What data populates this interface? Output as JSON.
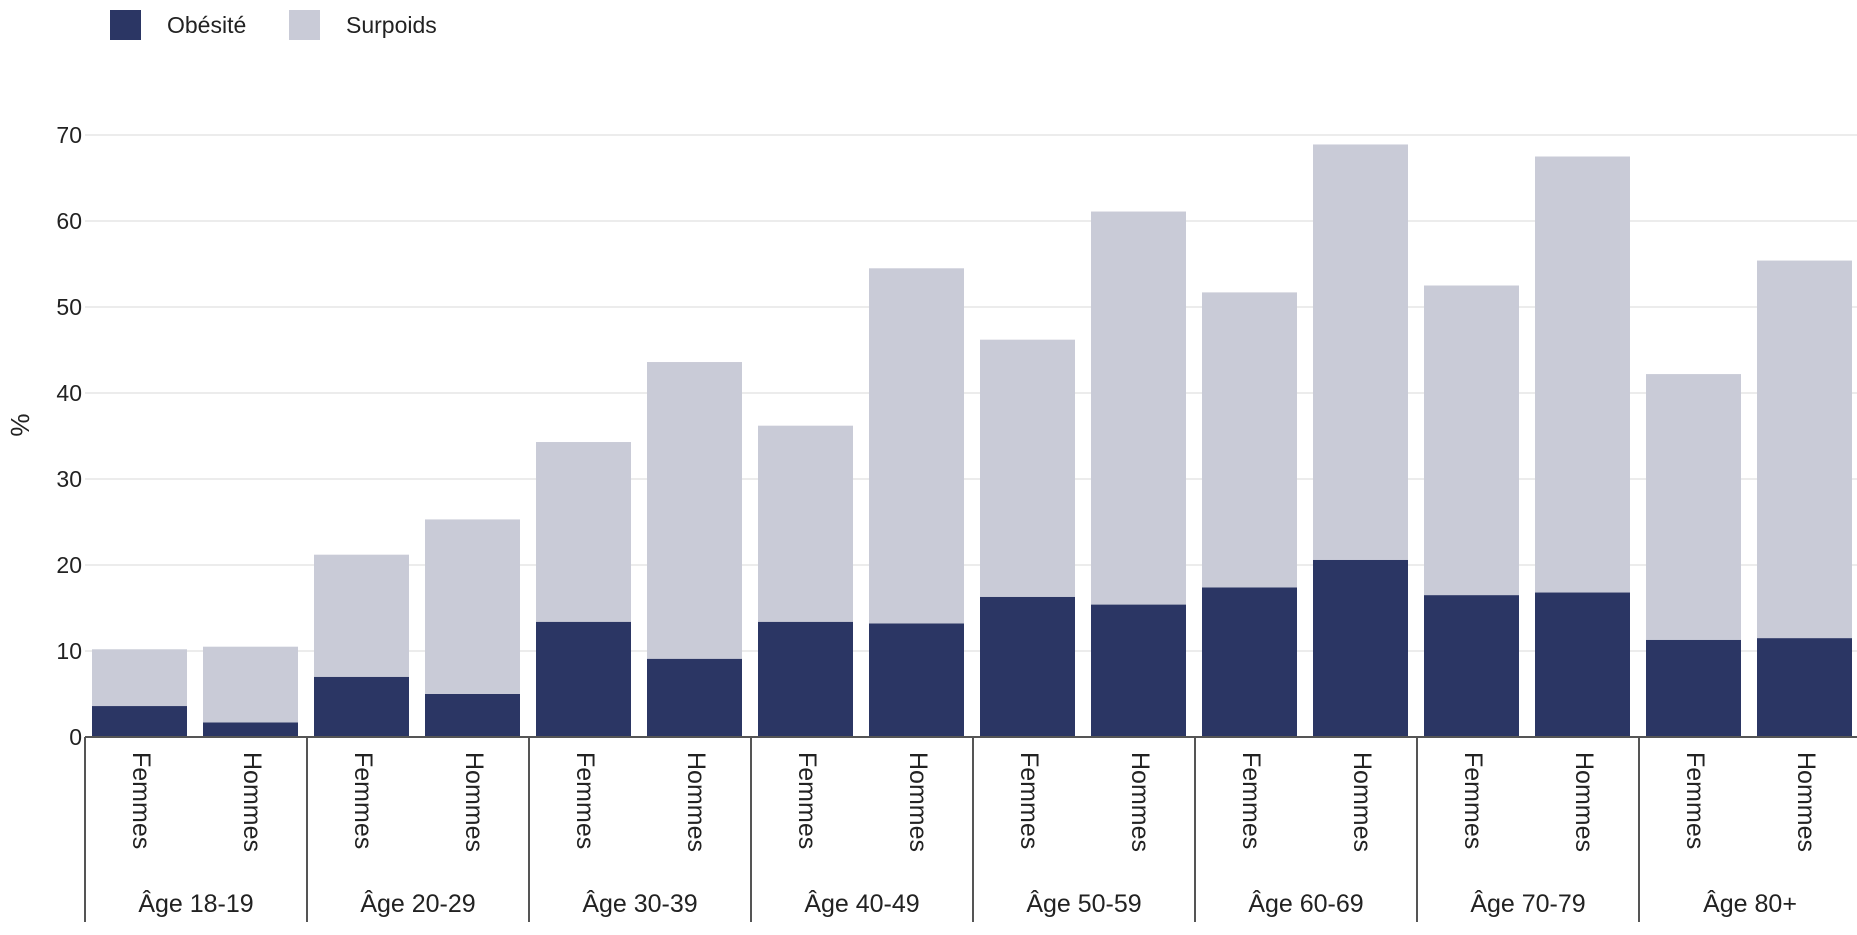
{
  "chart_data": {
    "type": "bar",
    "stacked": true,
    "ylabel": "%",
    "ylim": [
      0,
      70
    ],
    "yticks": [
      0,
      10,
      20,
      30,
      40,
      50,
      60,
      70
    ],
    "grid": true,
    "legend_position": "top-left",
    "groups": [
      "Âge 18-19",
      "Âge 20-29",
      "Âge 30-39",
      "Âge 40-49",
      "Âge 50-59",
      "Âge 60-69",
      "Âge 70-79",
      "Âge 80+"
    ],
    "subcategories": [
      "Femmes",
      "Hommes"
    ],
    "series": [
      {
        "name": "Obésité",
        "color": "#2b3664",
        "values": [
          3.6,
          1.7,
          7.0,
          5.0,
          13.4,
          9.1,
          13.4,
          13.2,
          16.3,
          15.4,
          17.4,
          20.6,
          16.5,
          16.8,
          11.3,
          11.5
        ]
      },
      {
        "name": "Surpoids",
        "color": "#c9cbd7",
        "values": [
          6.6,
          8.8,
          14.2,
          20.3,
          20.9,
          34.5,
          22.8,
          41.3,
          29.9,
          45.7,
          34.3,
          48.3,
          36.0,
          50.7,
          30.9,
          43.9
        ]
      }
    ]
  }
}
